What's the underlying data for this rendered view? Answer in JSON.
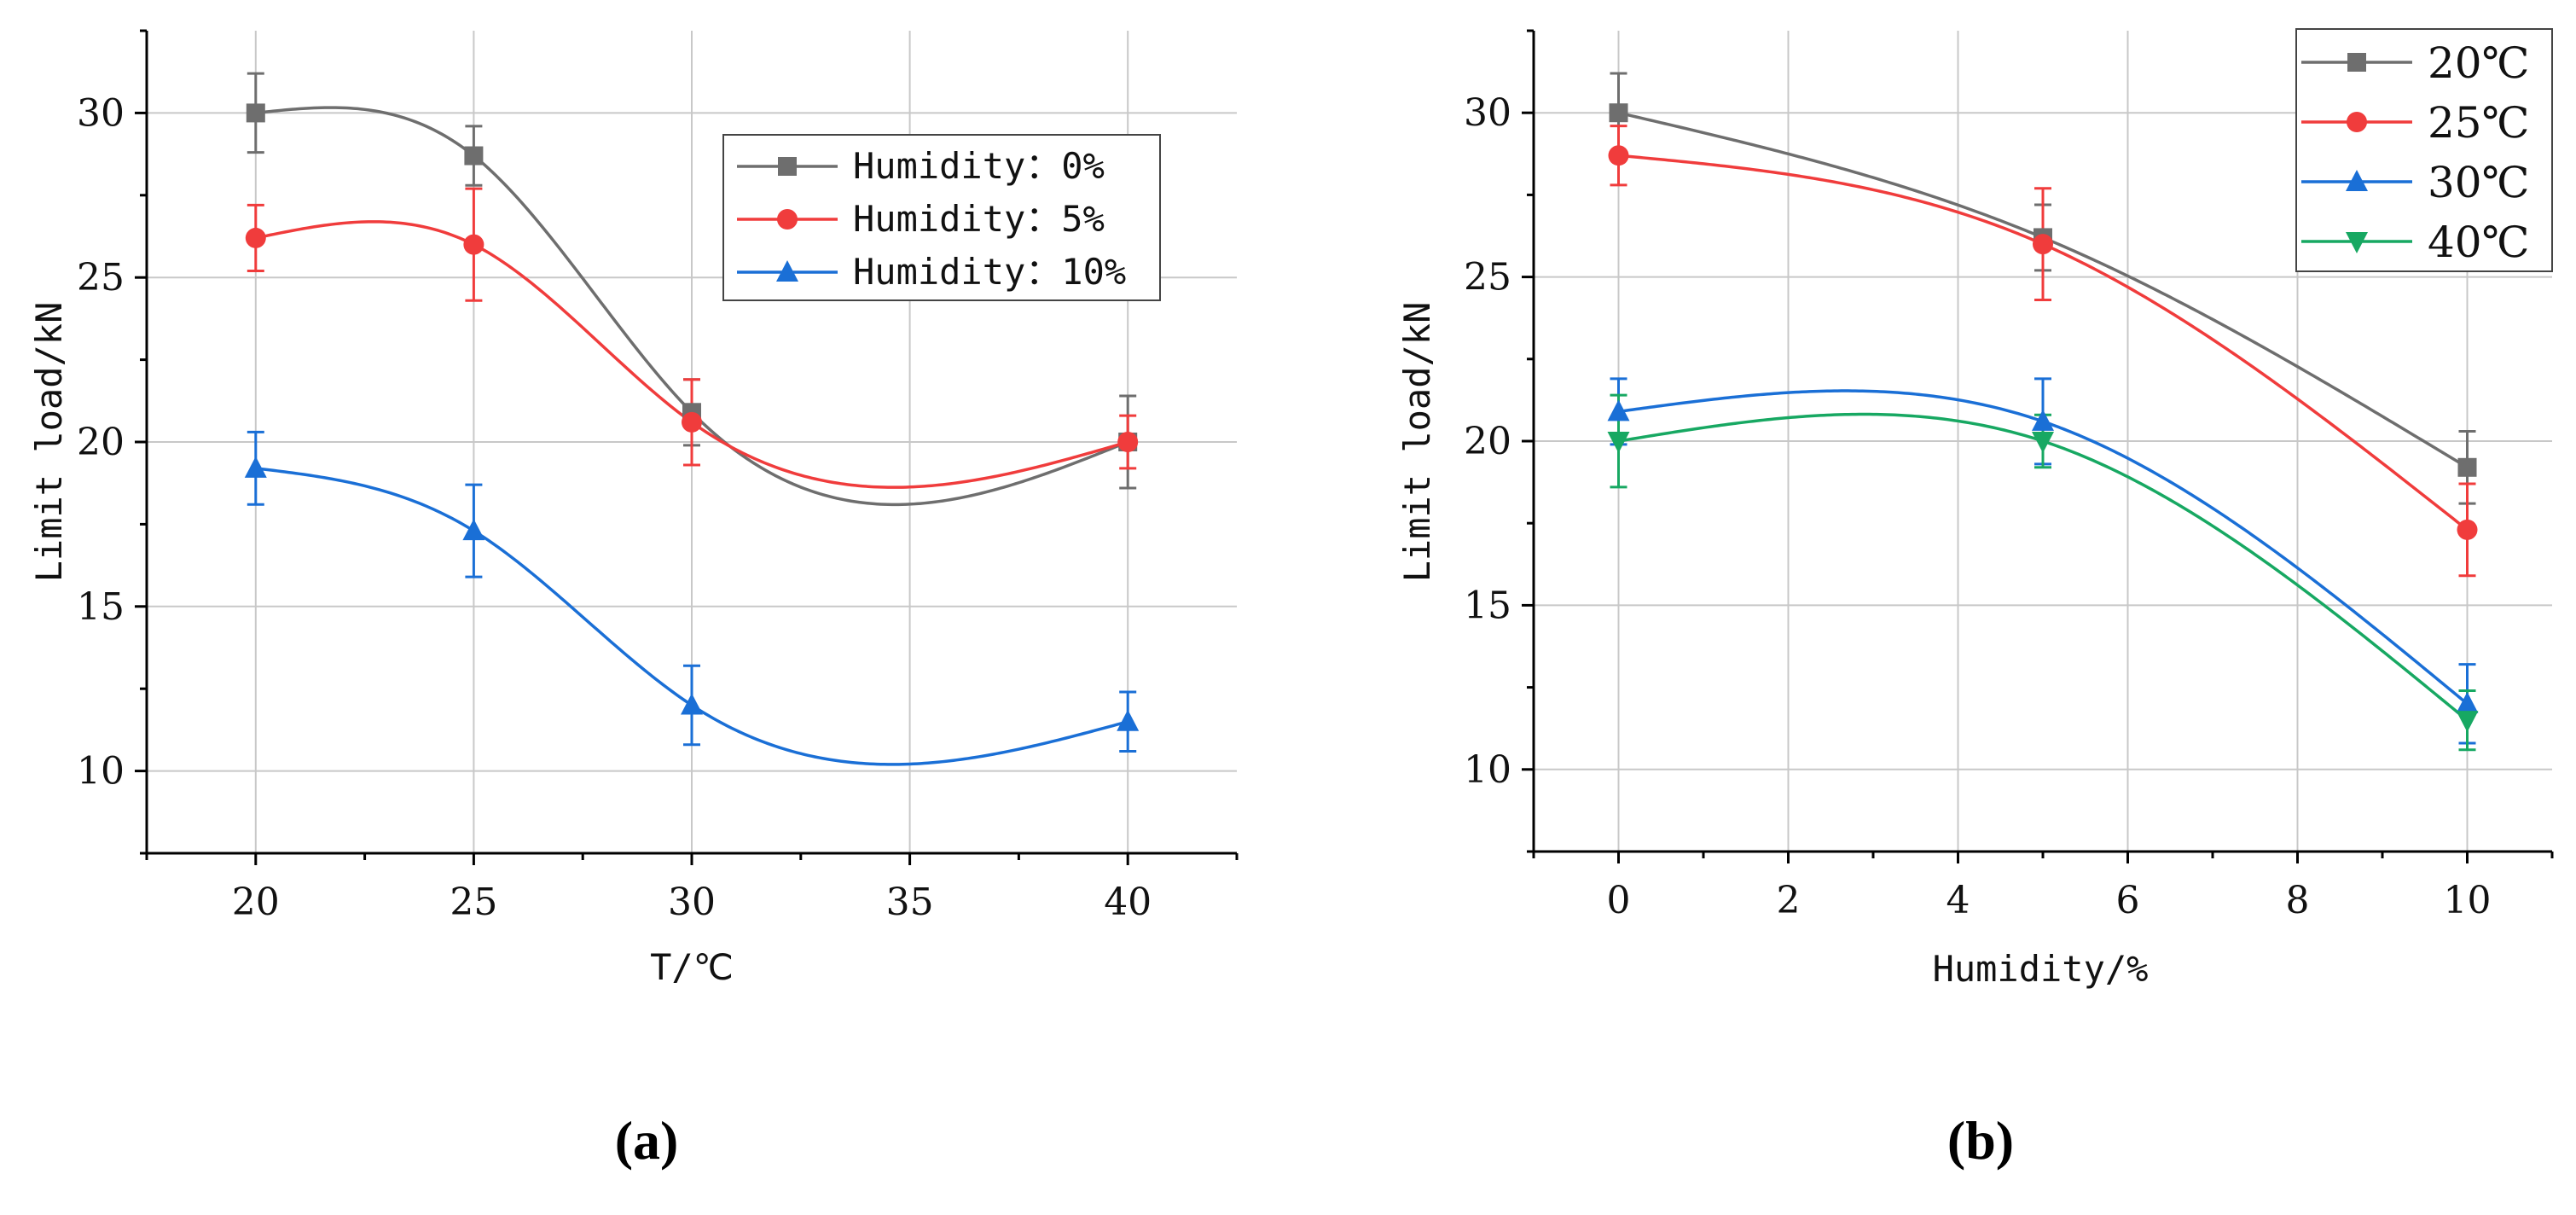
{
  "chart_data": [
    {
      "type": "line",
      "panel_label": "(a)",
      "xlabel": "T/℃",
      "ylabel": "Limit load/kN",
      "xlim": [
        17.5,
        42.5
      ],
      "ylim": [
        7.5,
        32.5
      ],
      "xticks": [
        20,
        25,
        30,
        35,
        40
      ],
      "yticks": [
        10,
        15,
        20,
        25,
        30
      ],
      "x_tick_labels": [
        "20",
        "25",
        "30",
        "35",
        "40"
      ],
      "grid": true,
      "legend_position": "top-right",
      "x_categories": [
        20,
        25,
        30,
        40
      ],
      "series": [
        {
          "name": "Humidity: 0%",
          "label": "Humidity：0%",
          "color": "#6e6e6e",
          "marker": "square",
          "values": [
            30.0,
            28.7,
            20.9,
            20.0
          ],
          "errors": [
            1.2,
            0.9,
            1.0,
            1.4
          ]
        },
        {
          "name": "Humidity: 5%",
          "label": "Humidity：5%",
          "color": "#f03c3c",
          "marker": "circle",
          "values": [
            26.2,
            26.0,
            20.6,
            20.0
          ],
          "errors": [
            1.0,
            1.7,
            1.3,
            0.8
          ]
        },
        {
          "name": "Humidity: 10%",
          "label": "Humidity：10%",
          "color": "#1a6fd6",
          "marker": "triangle-up",
          "values": [
            19.2,
            17.3,
            12.0,
            11.5
          ],
          "errors": [
            1.1,
            1.4,
            1.2,
            0.9
          ]
        }
      ]
    },
    {
      "type": "line",
      "panel_label": "(b)",
      "xlabel": "Humidity/%",
      "ylabel": "Limit load/kN",
      "xlim": [
        -1,
        11
      ],
      "ylim": [
        7.5,
        32.5
      ],
      "xticks": [
        0,
        2,
        4,
        6,
        8,
        10
      ],
      "yticks": [
        10,
        15,
        20,
        25,
        30
      ],
      "grid": true,
      "legend_position": "top-right",
      "x": [
        0,
        5,
        10
      ],
      "series": [
        {
          "name": "20℃",
          "color": "#6e6e6e",
          "marker": "square",
          "values": [
            30.0,
            26.2,
            19.2
          ],
          "errors": [
            1.2,
            1.0,
            1.1
          ]
        },
        {
          "name": "25℃",
          "color": "#f03c3c",
          "marker": "circle",
          "values": [
            28.7,
            26.0,
            17.3
          ],
          "errors": [
            0.9,
            1.7,
            1.4
          ]
        },
        {
          "name": "30℃",
          "color": "#1a6fd6",
          "marker": "triangle-up",
          "values": [
            20.9,
            20.6,
            12.0
          ],
          "errors": [
            1.0,
            1.3,
            1.2
          ]
        },
        {
          "name": "40℃",
          "color": "#17a862",
          "marker": "triangle-down",
          "values": [
            20.0,
            20.0,
            11.5
          ],
          "errors": [
            1.4,
            0.8,
            0.9
          ]
        }
      ]
    }
  ]
}
